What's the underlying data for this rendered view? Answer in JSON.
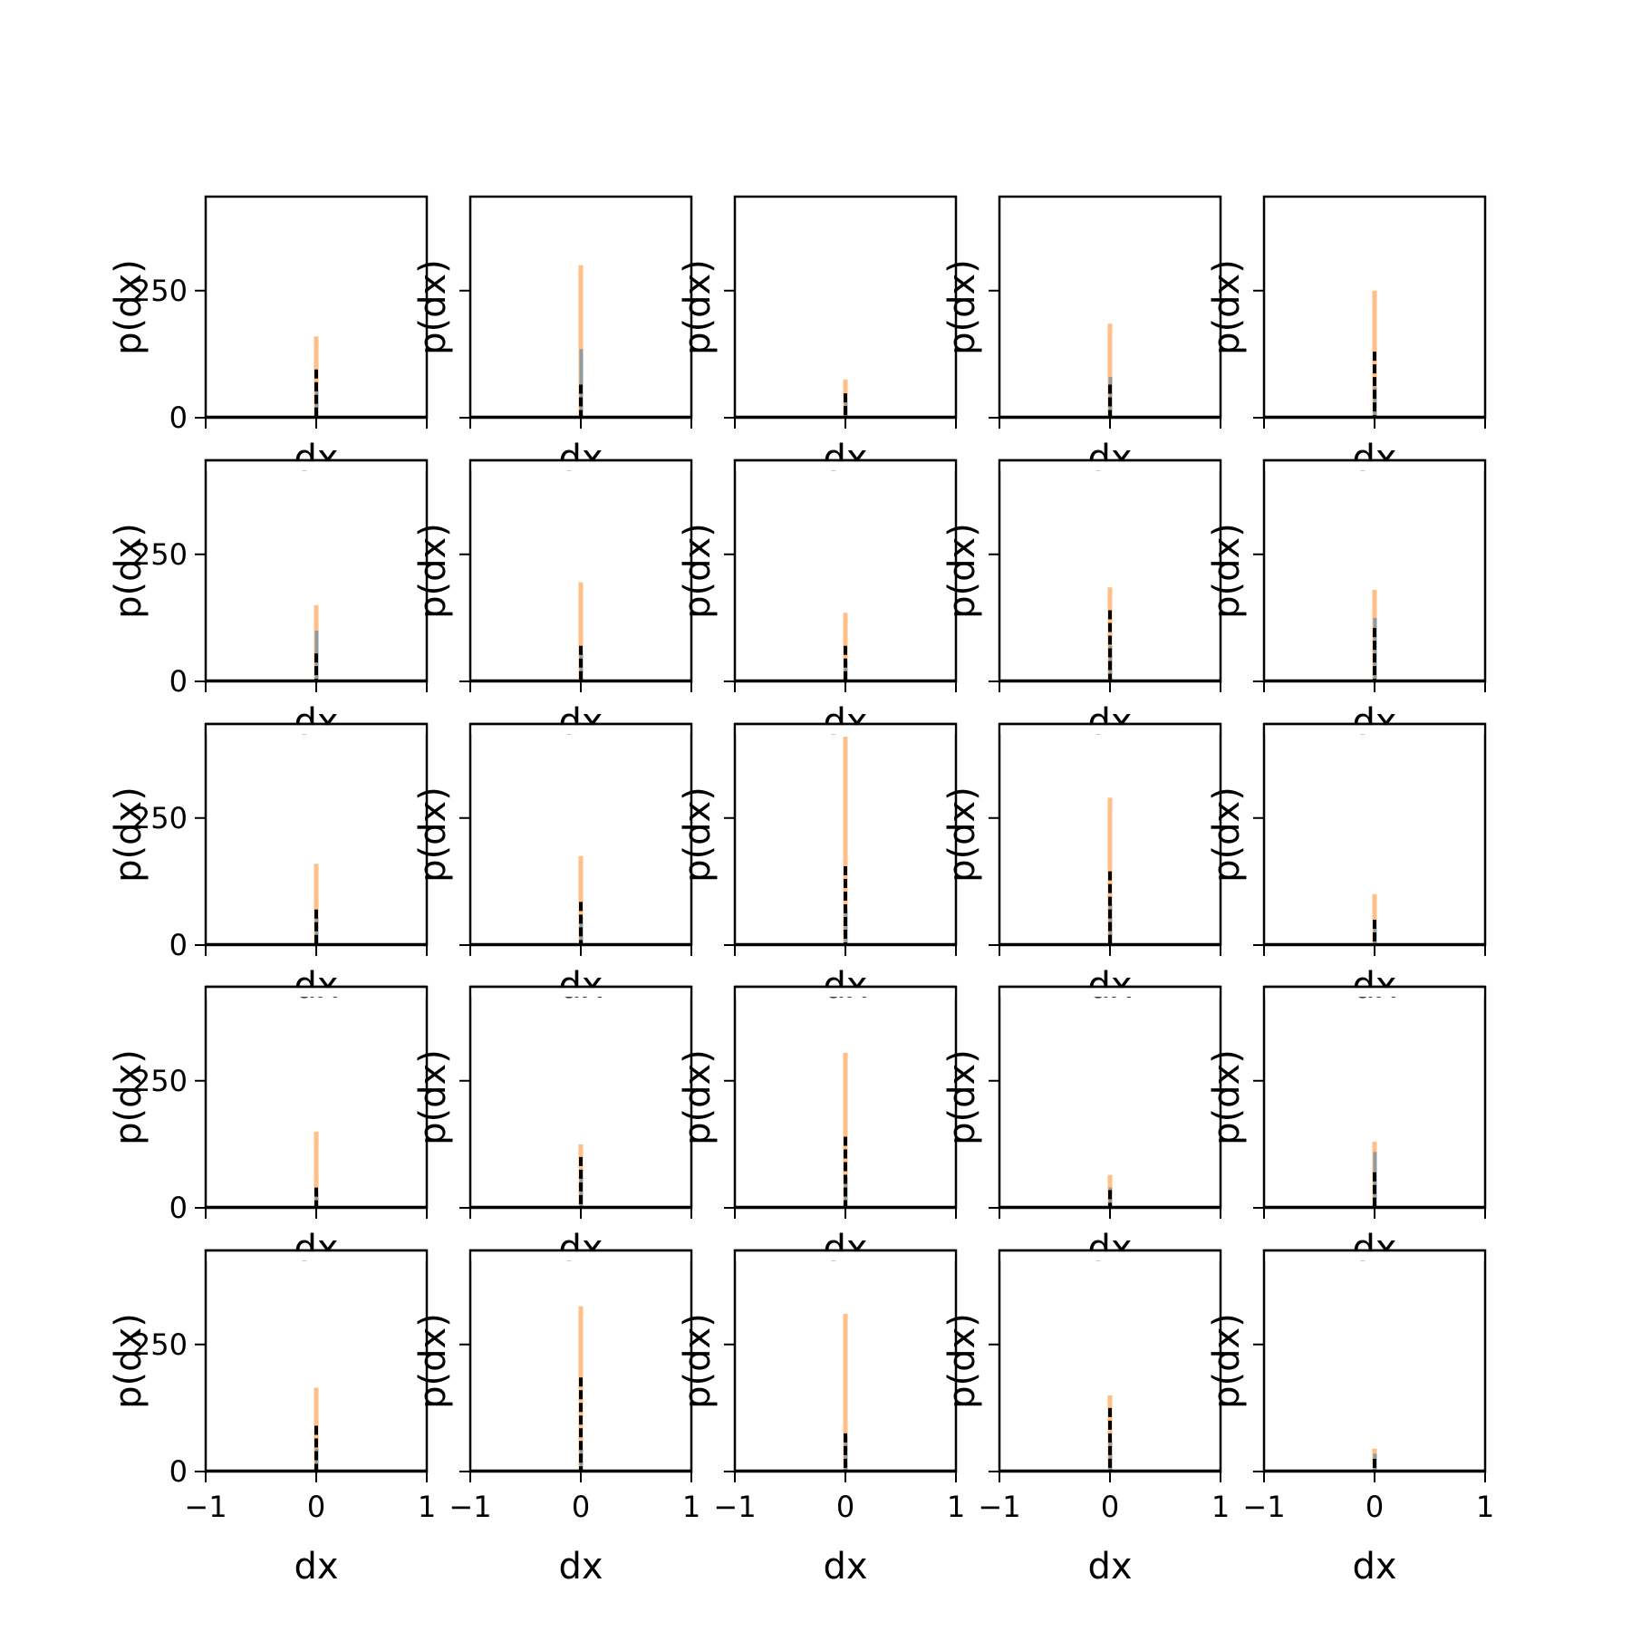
{
  "figure": {
    "rows": 5,
    "cols": 5
  },
  "colors": {
    "blue": "#1f77b4",
    "orange": "#ff7f0e",
    "black": "#000000"
  },
  "axis_text": {
    "xlabel": "dx",
    "ylabel": "p(dx)",
    "xtick_labels": [
      "−1",
      "0",
      "1"
    ],
    "ytick_labels": [
      "0",
      "250"
    ]
  },
  "chart_data": {
    "type": "bar",
    "description_of_layout": "",
    "xlabel": "dx",
    "ylabel": "p(dx)",
    "xlim": [
      -1,
      1
    ],
    "ylim": [
      0,
      435
    ],
    "xticks": [
      -1,
      0,
      1
    ],
    "yticks": [
      0,
      250
    ],
    "grid": false,
    "legend": "none",
    "panels": [
      {
        "orange": 160,
        "black": 95,
        "blue": 55
      },
      {
        "orange": 300,
        "black": 65,
        "blue": 135
      },
      {
        "orange": 75,
        "black": 48,
        "blue": 30
      },
      {
        "orange": 185,
        "black": 65,
        "blue": 80
      },
      {
        "orange": 250,
        "black": 130,
        "blue": 60
      },
      {
        "orange": 150,
        "black": 55,
        "blue": 100
      },
      {
        "orange": 195,
        "black": 70,
        "blue": 55
      },
      {
        "orange": 135,
        "black": 70,
        "blue": 40
      },
      {
        "orange": 185,
        "black": 140,
        "blue": 70
      },
      {
        "orange": 180,
        "black": 105,
        "blue": 125
      },
      {
        "orange": 160,
        "black": 70,
        "blue": 55
      },
      {
        "orange": 175,
        "black": 85,
        "blue": 55
      },
      {
        "orange": 410,
        "black": 155,
        "blue": 70
      },
      {
        "orange": 290,
        "black": 145,
        "blue": 80
      },
      {
        "orange": 100,
        "black": 50,
        "blue": 35
      },
      {
        "orange": 150,
        "black": 40,
        "blue": 30
      },
      {
        "orange": 125,
        "black": 100,
        "blue": 75
      },
      {
        "orange": 305,
        "black": 140,
        "blue": 60
      },
      {
        "orange": 65,
        "black": 35,
        "blue": 40
      },
      {
        "orange": 130,
        "black": 70,
        "blue": 110
      },
      {
        "orange": 165,
        "black": 90,
        "blue": 45
      },
      {
        "orange": 325,
        "black": 185,
        "blue": 45
      },
      {
        "orange": 310,
        "black": 75,
        "blue": 70
      },
      {
        "orange": 150,
        "black": 125,
        "blue": 60
      },
      {
        "orange": 45,
        "black": 25,
        "blue": 35
      }
    ]
  }
}
